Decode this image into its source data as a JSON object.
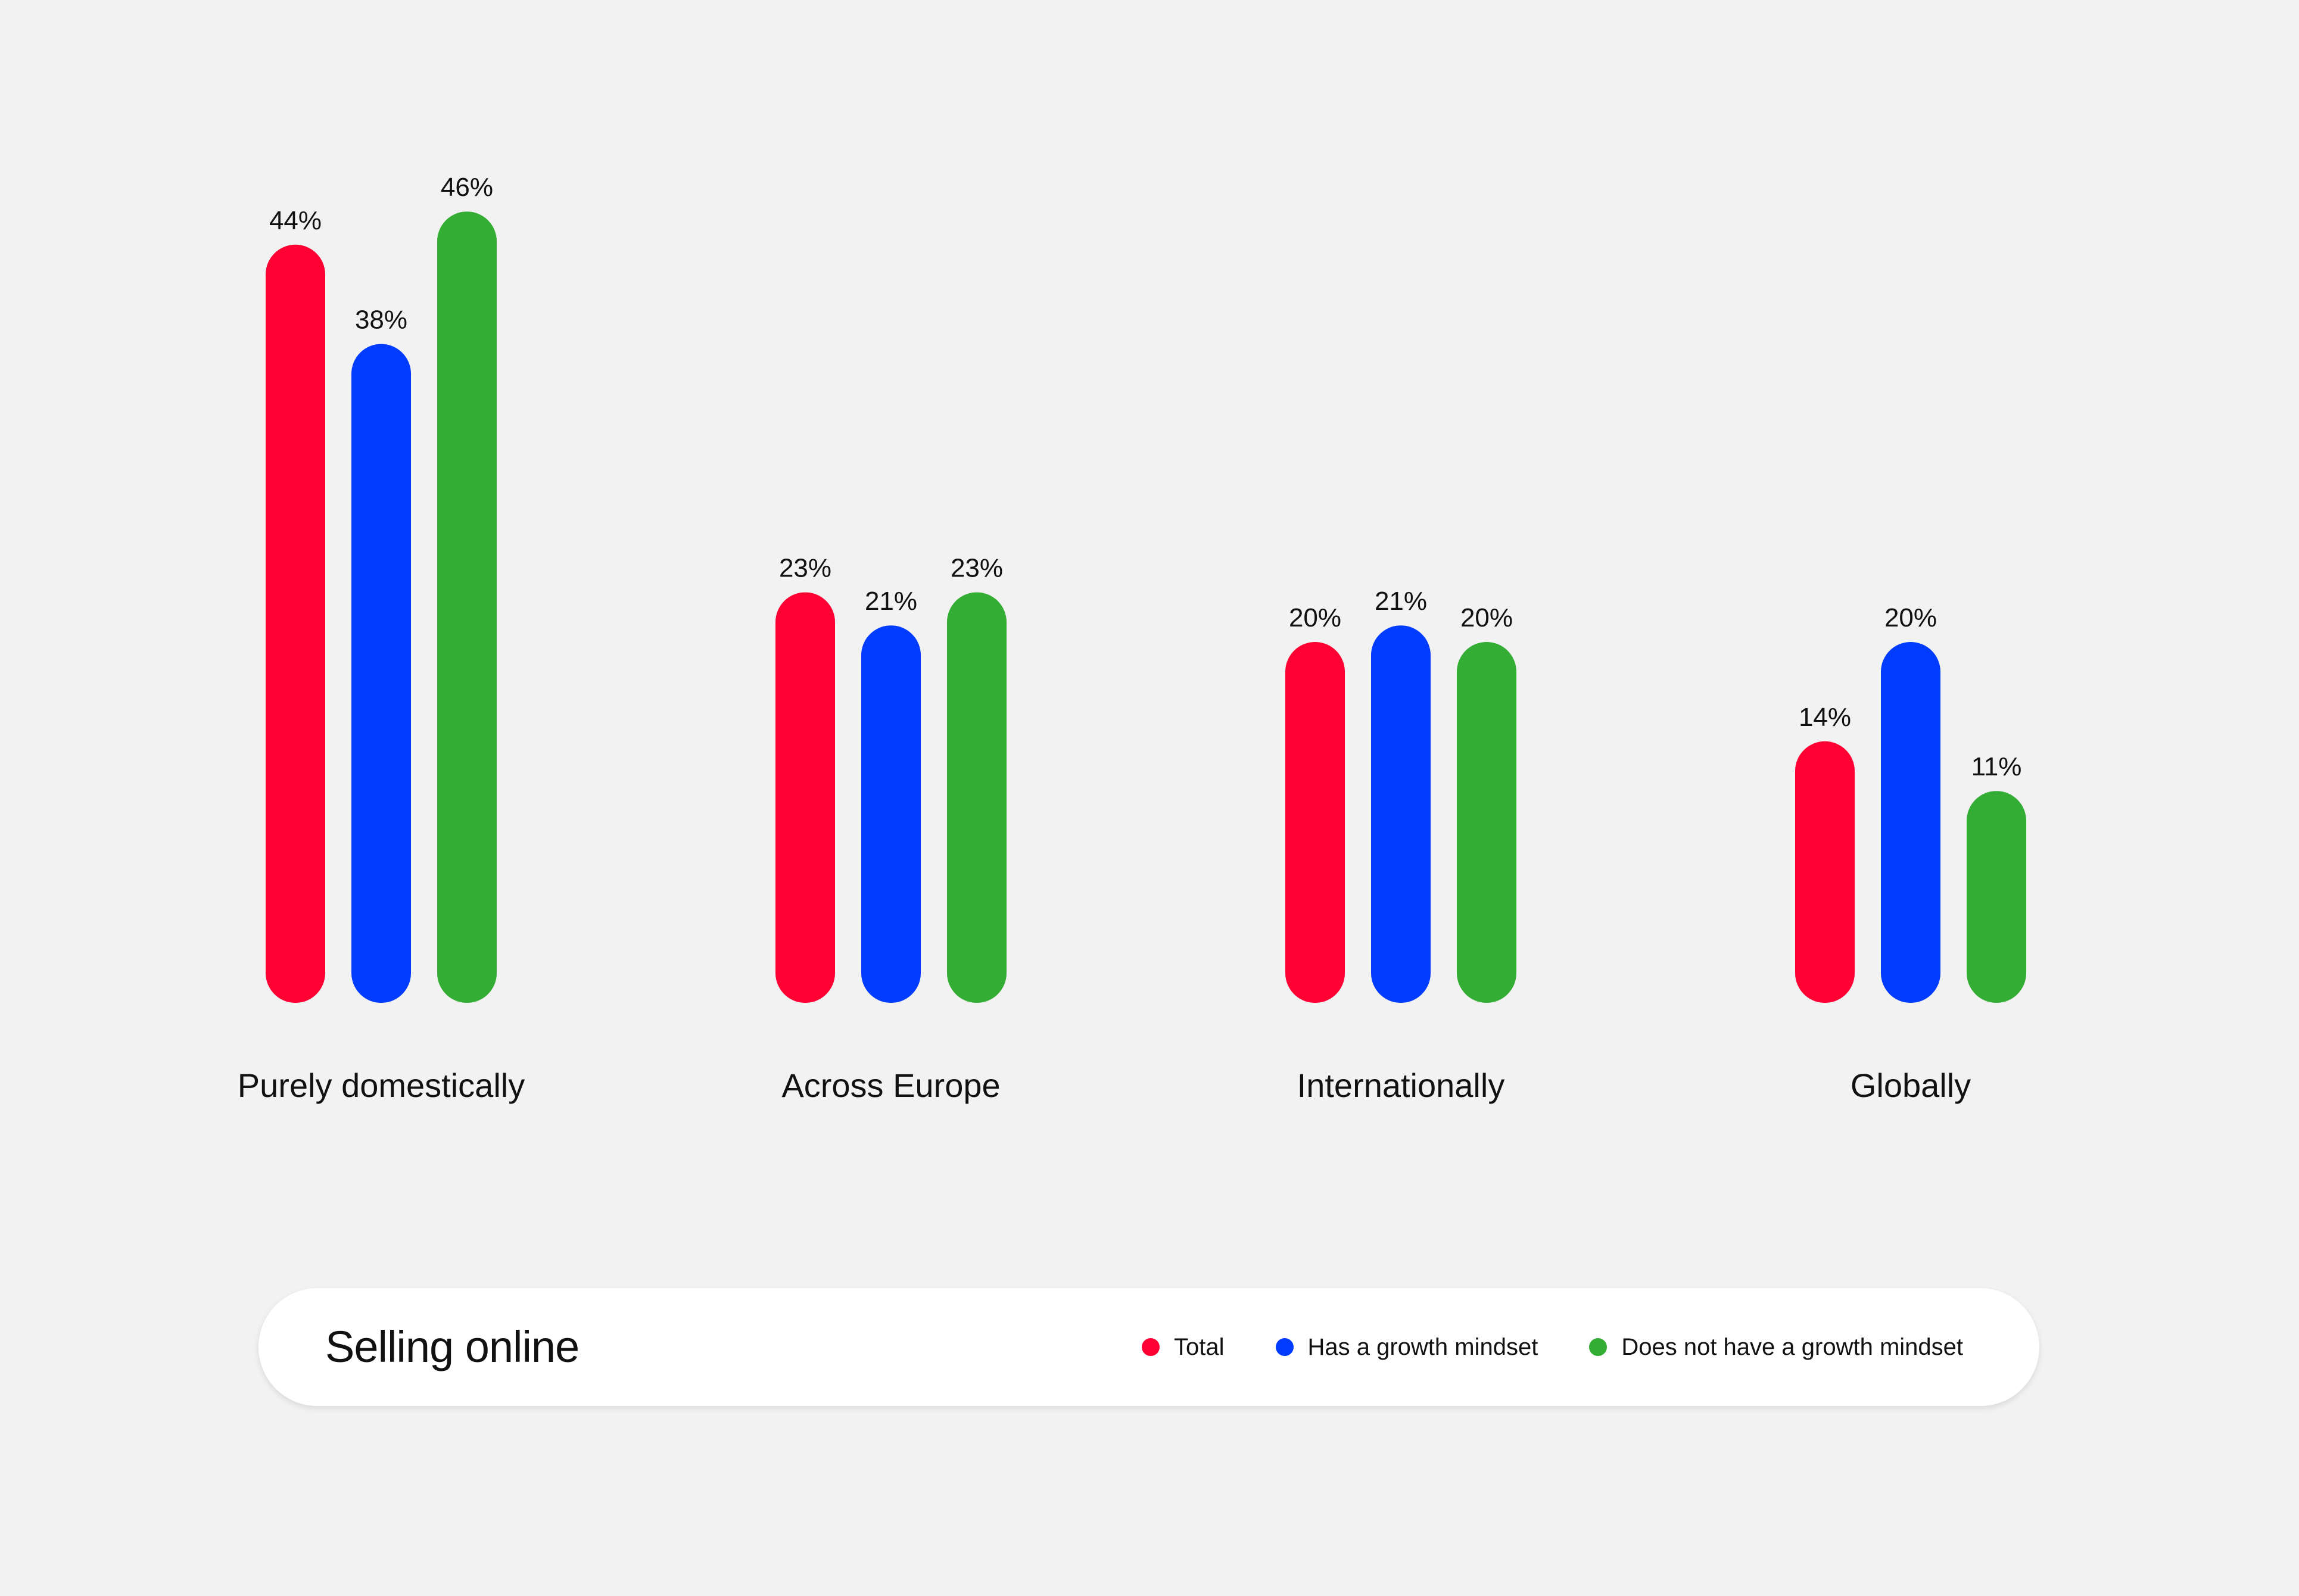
{
  "chart_data": {
    "type": "bar",
    "title": "Selling online",
    "categories": [
      "Purely domestically",
      "Across Europe",
      "Internationally",
      "Globally"
    ],
    "series": [
      {
        "name": "Total",
        "color": "#ff0033",
        "values": [
          44,
          23,
          20,
          14
        ]
      },
      {
        "name": "Has a growth mindset",
        "color": "#003cff",
        "values": [
          38,
          21,
          21,
          20
        ]
      },
      {
        "name": "Does not have a growth mindset",
        "color": "#33ad33",
        "values": [
          46,
          23,
          20,
          11
        ]
      }
    ],
    "value_labels": [
      [
        "44%",
        "23%",
        "20%",
        "14%"
      ],
      [
        "38%",
        "21%",
        "21%",
        "20%"
      ],
      [
        "46%",
        "23%",
        "20%",
        "11%"
      ]
    ],
    "unit": "%",
    "ylim": [
      0,
      46
    ],
    "grid": false,
    "legend_position": "bottom"
  }
}
